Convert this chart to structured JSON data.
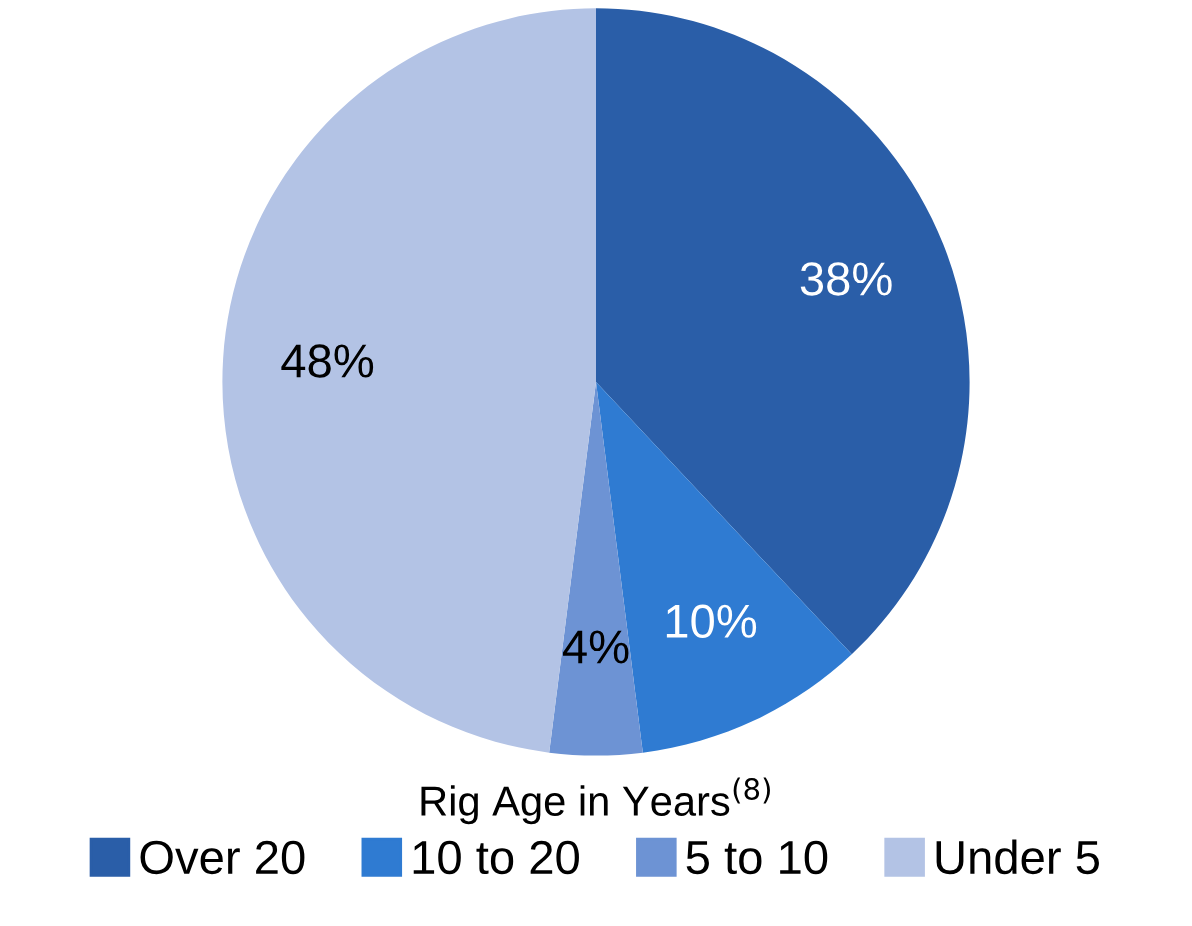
{
  "chart_data": {
    "type": "pie",
    "title": "Rig Age in Years$^{(8)}$",
    "categories": [
      "Over 20",
      "10 to 20",
      "5 to 10",
      "Under 5"
    ],
    "values": [
      38,
      10,
      4,
      48
    ],
    "value_labels": [
      "38%",
      "10%",
      "4%",
      "48%"
    ],
    "colors": [
      "#2a5ea8",
      "#2f7bd2",
      "#6d93d4",
      "#b3c3e5"
    ],
    "legend": "bottom"
  }
}
